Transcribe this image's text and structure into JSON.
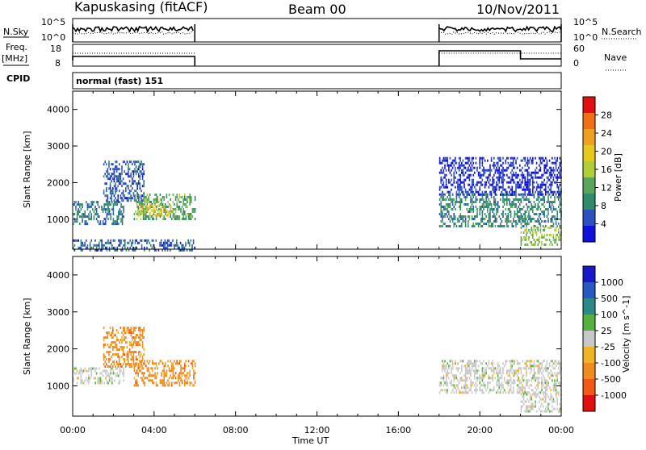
{
  "header": {
    "station": "Kapuskasing (fitACF)",
    "beam": "Beam 00",
    "date": "10/Nov/2011"
  },
  "noise_panel": {
    "left_label": "N.Sky",
    "right_label": "N.Search",
    "left_ticks": [
      "10^5",
      "10^0"
    ],
    "right_ticks": [
      "10^5",
      "10^0"
    ]
  },
  "freq_panel": {
    "left_label_1": "Freq.",
    "left_label_2": "[MHz]",
    "right_label": "Nave",
    "left_ticks": [
      "18",
      "8"
    ],
    "right_ticks": [
      "60",
      "0"
    ]
  },
  "cpid": {
    "label": "CPID",
    "value": "normal (fast) 151"
  },
  "x_axis": {
    "label": "Time UT",
    "ticks": [
      "00:00",
      "04:00",
      "08:00",
      "12:00",
      "16:00",
      "20:00",
      "00:00"
    ]
  },
  "colors": {
    "power": [
      "#1010d8",
      "#2d4fc0",
      "#2f8a6e",
      "#5aa55a",
      "#b2cc3a",
      "#e6c81e",
      "#f0a020",
      "#f07018",
      "#e01010"
    ],
    "velocity": [
      "#1818c8",
      "#2858c0",
      "#2a8a8a",
      "#55b040",
      "#c8c8c8",
      "#f0b428",
      "#f08c1e",
      "#f05a14",
      "#e01010"
    ]
  },
  "chart_data": [
    {
      "type": "heatmap",
      "title": "",
      "xlabel": "",
      "ylabel": "Slant Range [km]",
      "xlim": [
        0,
        24
      ],
      "ylim": [
        180,
        4500
      ],
      "y_ticks": [
        "1000",
        "2000",
        "3000",
        "4000"
      ],
      "colorbar": {
        "label": "Power [dB]",
        "ticks": [
          "4",
          "8",
          "12",
          "16",
          "20",
          "24",
          "28"
        ],
        "range": [
          0,
          30
        ]
      },
      "data_coverage_hours": [
        [
          0,
          6
        ],
        [
          18,
          24
        ]
      ],
      "echo_regions": [
        {
          "t_start": 0.0,
          "t_end": 2.5,
          "range_start": 900,
          "range_end": 1500,
          "power_db": 8
        },
        {
          "t_start": 1.5,
          "t_end": 3.5,
          "range_start": 1500,
          "range_end": 2600,
          "power_db": 6
        },
        {
          "t_start": 3.0,
          "t_end": 6.0,
          "range_start": 1000,
          "range_end": 1700,
          "power_db": 12
        },
        {
          "t_start": 3.2,
          "t_end": 4.8,
          "range_start": 1100,
          "range_end": 1400,
          "power_db": 19
        },
        {
          "t_start": 0.0,
          "t_end": 6.0,
          "range_start": 180,
          "range_end": 450,
          "power_db": 6
        },
        {
          "t_start": 18.0,
          "t_end": 24.0,
          "range_start": 800,
          "range_end": 1700,
          "power_db": 9
        },
        {
          "t_start": 18.0,
          "t_end": 24.0,
          "range_start": 1700,
          "range_end": 2700,
          "power_db": 4
        },
        {
          "t_start": 22.0,
          "t_end": 24.0,
          "range_start": 300,
          "range_end": 800,
          "power_db": 14
        }
      ]
    },
    {
      "type": "heatmap",
      "title": "",
      "xlabel": "Time UT",
      "ylabel": "Slant Range [km]",
      "xlim": [
        0,
        24
      ],
      "ylim": [
        180,
        4500
      ],
      "y_ticks": [
        "1000",
        "2000",
        "3000",
        "4000"
      ],
      "colorbar": {
        "label": "Velocity [m s^-1]",
        "ticks": [
          "1000",
          "500",
          "100",
          "25",
          "-25",
          "-100",
          "-500",
          "-1000"
        ]
      },
      "echo_regions": [
        {
          "t_start": 0.0,
          "t_end": 2.5,
          "range_start": 1100,
          "range_end": 1500,
          "velocity": 0
        },
        {
          "t_start": 1.5,
          "t_end": 3.5,
          "range_start": 1500,
          "range_end": 2600,
          "velocity": -100
        },
        {
          "t_start": 3.0,
          "t_end": 6.0,
          "range_start": 1000,
          "range_end": 1700,
          "velocity": -100
        },
        {
          "t_start": 18.0,
          "t_end": 24.0,
          "range_start": 800,
          "range_end": 1700,
          "velocity": 0
        },
        {
          "t_start": 22.0,
          "t_end": 24.0,
          "range_start": 300,
          "range_end": 800,
          "velocity": 0
        }
      ]
    }
  ]
}
